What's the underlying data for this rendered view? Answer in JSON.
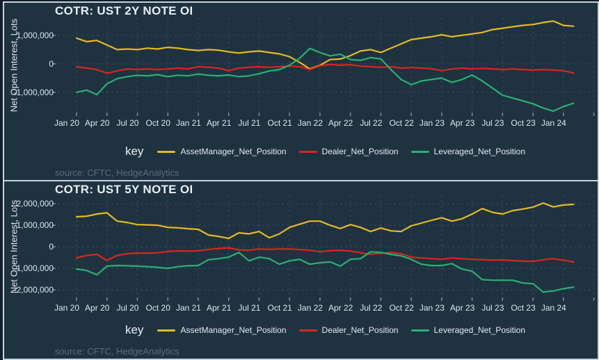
{
  "colors": {
    "background": "#131e29",
    "panel_background": "#1f3240",
    "panel_border": "#c3d6e0",
    "grid": "#4a627a",
    "tick": "#91a5b4",
    "text": "#e9eff4",
    "muted_text": "#5a6c79",
    "asset_manager": "#e5bb21",
    "dealer": "#dc251c",
    "leveraged": "#29b173"
  },
  "chart_data": [
    {
      "type": "line",
      "title": "COTR: UST 2Y NOTE OI",
      "ylabel": "Net Open Interest, Lots",
      "legend_title": "key",
      "source": "source: CFTC, HedgeAnalytics",
      "legend_position": "bottom",
      "grid": true,
      "ylim": [
        -1710000,
        1630000
      ],
      "yticks": [
        {
          "value": 1000000,
          "label": "1,000,000"
        },
        {
          "value": 0,
          "label": "0"
        },
        {
          "value": -1000000,
          "label": "-1,000,000"
        }
      ],
      "x_unit": "months since Jan 2020, weekly CFTC data approximated monthly",
      "xticks": [
        {
          "month": 0,
          "label": "Jan 20"
        },
        {
          "month": 3,
          "label": "Apr 20"
        },
        {
          "month": 6,
          "label": "Jul 20"
        },
        {
          "month": 9,
          "label": "Oct 20"
        },
        {
          "month": 12,
          "label": "Jan 21"
        },
        {
          "month": 15,
          "label": "Apr 21"
        },
        {
          "month": 18,
          "label": "Jul 21"
        },
        {
          "month": 21,
          "label": "Oct 21"
        },
        {
          "month": 24,
          "label": "Jan 22"
        },
        {
          "month": 27,
          "label": "Apr 22"
        },
        {
          "month": 30,
          "label": "Jul 22"
        },
        {
          "month": 33,
          "label": "Oct 22"
        },
        {
          "month": 36,
          "label": "Jan 23"
        },
        {
          "month": 39,
          "label": "Apr 23"
        },
        {
          "month": 42,
          "label": "Jul 23"
        },
        {
          "month": 45,
          "label": "Oct 23"
        },
        {
          "month": 48,
          "label": "Jan 24"
        }
      ],
      "series": [
        {
          "name": "AssetManager_Net_Position",
          "color": "#e5bb21",
          "values": [
            900000,
            780000,
            820000,
            660000,
            500000,
            520000,
            500000,
            550000,
            520000,
            580000,
            550000,
            500000,
            470000,
            500000,
            480000,
            420000,
            380000,
            420000,
            450000,
            400000,
            350000,
            250000,
            50000,
            -180000,
            -50000,
            150000,
            170000,
            290000,
            450000,
            500000,
            400000,
            550000,
            700000,
            850000,
            900000,
            950000,
            1020000,
            950000,
            1000000,
            1050000,
            1100000,
            1200000,
            1250000,
            1300000,
            1350000,
            1380000,
            1450000,
            1500000,
            1350000,
            1320000
          ]
        },
        {
          "name": "Dealer_Net_Position",
          "color": "#dc251c",
          "values": [
            -100000,
            -150000,
            -200000,
            -330000,
            -250000,
            -180000,
            -200000,
            -180000,
            -200000,
            -180000,
            -150000,
            -180000,
            -100000,
            -120000,
            -150000,
            -240000,
            -150000,
            -120000,
            -100000,
            -120000,
            -100000,
            -80000,
            -100000,
            -200000,
            -70000,
            -20000,
            -50000,
            -30000,
            -80000,
            -100000,
            -120000,
            -100000,
            -150000,
            -130000,
            -150000,
            -170000,
            -240000,
            -180000,
            -150000,
            -180000,
            -160000,
            -180000,
            -200000,
            -180000,
            -200000,
            -220000,
            -200000,
            -220000,
            -240000,
            -320000
          ]
        },
        {
          "name": "Leveraged_Net_Position",
          "color": "#29b173",
          "values": [
            -1000000,
            -920000,
            -1080000,
            -700000,
            -520000,
            -450000,
            -400000,
            -420000,
            -380000,
            -450000,
            -400000,
            -420000,
            -360000,
            -400000,
            -420000,
            -390000,
            -450000,
            -420000,
            -350000,
            -250000,
            -200000,
            -50000,
            200000,
            540000,
            400000,
            280000,
            340000,
            150000,
            120000,
            220000,
            170000,
            -200000,
            -550000,
            -730000,
            -600000,
            -550000,
            -500000,
            -650000,
            -550000,
            -390000,
            -600000,
            -850000,
            -1100000,
            -1200000,
            -1300000,
            -1400000,
            -1550000,
            -1660000,
            -1500000,
            -1380000
          ]
        }
      ]
    },
    {
      "type": "line",
      "title": "COTR: UST 5Y NOTE OI",
      "ylabel": "Net Open Interest, Lots",
      "legend_title": "key",
      "source": "source: CFTC, HedgeAnalytics",
      "legend_position": "bottom",
      "grid": true,
      "ylim": [
        -2350000,
        2390000
      ],
      "yticks": [
        {
          "value": 2000000,
          "label": "2,000,000"
        },
        {
          "value": 1000000,
          "label": "1,000,000"
        },
        {
          "value": 0,
          "label": "0"
        },
        {
          "value": -1000000,
          "label": "-1,000,000"
        },
        {
          "value": -2000000,
          "label": "-2,000,000"
        }
      ],
      "x_unit": "months since Jan 2020, weekly CFTC data approximated monthly",
      "xticks": [
        {
          "month": 0,
          "label": "Jan 20"
        },
        {
          "month": 3,
          "label": "Apr 20"
        },
        {
          "month": 6,
          "label": "Jul 20"
        },
        {
          "month": 9,
          "label": "Oct 20"
        },
        {
          "month": 12,
          "label": "Jan 21"
        },
        {
          "month": 15,
          "label": "Apr 21"
        },
        {
          "month": 18,
          "label": "Jul 21"
        },
        {
          "month": 21,
          "label": "Oct 21"
        },
        {
          "month": 24,
          "label": "Jan 22"
        },
        {
          "month": 27,
          "label": "Apr 22"
        },
        {
          "month": 30,
          "label": "Jul 22"
        },
        {
          "month": 33,
          "label": "Oct 22"
        },
        {
          "month": 36,
          "label": "Jan 23"
        },
        {
          "month": 39,
          "label": "Apr 23"
        },
        {
          "month": 42,
          "label": "Jul 23"
        },
        {
          "month": 45,
          "label": "Oct 23"
        },
        {
          "month": 48,
          "label": "Jan 24"
        }
      ],
      "series": [
        {
          "name": "AssetManager_Net_Position",
          "color": "#e5bb21",
          "values": [
            1390000,
            1420000,
            1520000,
            1580000,
            1190000,
            1130000,
            1030000,
            1020000,
            1000000,
            900000,
            880000,
            840000,
            810000,
            550000,
            480000,
            390000,
            650000,
            600000,
            710000,
            420000,
            600000,
            900000,
            1050000,
            1190000,
            1190000,
            1000000,
            850000,
            1030000,
            900000,
            710000,
            870000,
            740000,
            710000,
            970000,
            1100000,
            1230000,
            1350000,
            1190000,
            1300000,
            1520000,
            1770000,
            1600000,
            1520000,
            1680000,
            1750000,
            1840000,
            2030000,
            1850000,
            1940000,
            1970000
          ]
        },
        {
          "name": "Dealer_Net_Position",
          "color": "#dc251c",
          "values": [
            -520000,
            -400000,
            -350000,
            -630000,
            -400000,
            -320000,
            -290000,
            -300000,
            -280000,
            -220000,
            -190000,
            -200000,
            -190000,
            -120000,
            -80000,
            -50000,
            -140000,
            -160000,
            -100000,
            -120000,
            -100000,
            -100000,
            -130000,
            -160000,
            -230000,
            -180000,
            -160000,
            -200000,
            -280000,
            -350000,
            -300000,
            -260000,
            -320000,
            -480000,
            -520000,
            -550000,
            -580000,
            -520000,
            -550000,
            -580000,
            -600000,
            -620000,
            -610000,
            -640000,
            -660000,
            -680000,
            -600000,
            -550000,
            -620000,
            -710000
          ]
        },
        {
          "name": "Leveraged_Net_Position",
          "color": "#29b173",
          "values": [
            -1030000,
            -1100000,
            -1300000,
            -900000,
            -870000,
            -880000,
            -900000,
            -920000,
            -950000,
            -1000000,
            -920000,
            -880000,
            -870000,
            -600000,
            -550000,
            -480000,
            -260000,
            -650000,
            -480000,
            -550000,
            -810000,
            -650000,
            -580000,
            -810000,
            -740000,
            -700000,
            -900000,
            -580000,
            -550000,
            -230000,
            -260000,
            -350000,
            -420000,
            -580000,
            -810000,
            -870000,
            -870000,
            -780000,
            -1030000,
            -1130000,
            -1520000,
            -1550000,
            -1550000,
            -1550000,
            -1680000,
            -1710000,
            -2100000,
            -2050000,
            -1940000,
            -1870000
          ]
        }
      ]
    }
  ]
}
